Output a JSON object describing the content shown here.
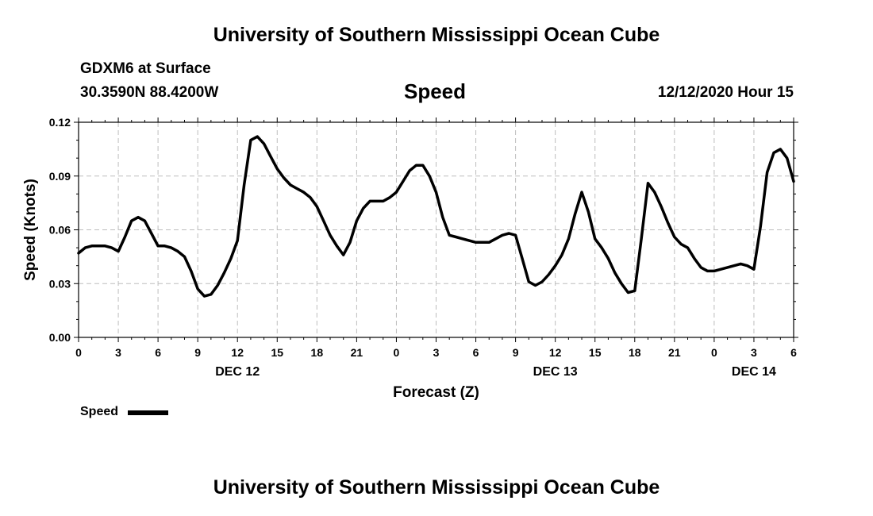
{
  "header": {
    "top_title": "University of Southern Mississippi Ocean Cube",
    "station": "GDXM6 at Surface",
    "coords": "30.3590N 88.4200W",
    "timestamp": "12/12/2020 Hour 15",
    "bottom_title": "University of Southern Mississippi Ocean Cube"
  },
  "legend": {
    "label": "Speed",
    "color": "#000000"
  },
  "chart_data": {
    "type": "line",
    "title": "Speed",
    "xlabel": "Forecast (Z)",
    "ylabel": "Speed (Knots)",
    "xlim": [
      0,
      54
    ],
    "ylim": [
      0,
      0.12
    ],
    "grid": true,
    "y_ticks": [
      "0.00",
      "0.03",
      "0.06",
      "0.09",
      "0.12"
    ],
    "x_tick_labels": [
      "0",
      "3",
      "6",
      "9",
      "12",
      "15",
      "18",
      "21",
      "0",
      "3",
      "6",
      "9",
      "12",
      "15",
      "18",
      "21",
      "0",
      "3",
      "6"
    ],
    "day_labels": [
      {
        "label": "DEC 12",
        "at_hours": 12
      },
      {
        "label": "DEC 13",
        "at_hours": 36
      },
      {
        "label": "DEC 14",
        "at_hours": 51
      }
    ],
    "series": [
      {
        "name": "Speed",
        "color": "#000000",
        "x": [
          0,
          0.5,
          1,
          1.5,
          2,
          2.5,
          3,
          3.5,
          4,
          4.5,
          5,
          5.5,
          6,
          6.5,
          7,
          7.5,
          8,
          8.5,
          9,
          9.5,
          10,
          10.5,
          11,
          11.5,
          12,
          12.5,
          13,
          13.5,
          14,
          14.5,
          15,
          15.5,
          16,
          16.5,
          17,
          17.5,
          18,
          18.5,
          19,
          19.5,
          20,
          20.5,
          21,
          21.5,
          22,
          22.5,
          23,
          23.5,
          24,
          24.5,
          25,
          25.5,
          26,
          26.5,
          27,
          27.5,
          28,
          28.5,
          29,
          29.5,
          30,
          30.5,
          31,
          31.5,
          32,
          32.5,
          33,
          33.5,
          34,
          34.5,
          35,
          35.5,
          36,
          36.5,
          37,
          37.5,
          38,
          38.5,
          39,
          39.5,
          40,
          40.5,
          41,
          41.5,
          42,
          42.5,
          43,
          43.5,
          44,
          44.5,
          45,
          45.5,
          46,
          46.5,
          47,
          47.5,
          48,
          48.5,
          49,
          49.5,
          50,
          50.5,
          51,
          51.5,
          52,
          52.5,
          53,
          53.5,
          54
        ],
        "values": [
          0.047,
          0.05,
          0.051,
          0.051,
          0.051,
          0.05,
          0.048,
          0.056,
          0.065,
          0.067,
          0.065,
          0.058,
          0.051,
          0.051,
          0.05,
          0.048,
          0.045,
          0.037,
          0.027,
          0.023,
          0.024,
          0.029,
          0.036,
          0.044,
          0.054,
          0.085,
          0.11,
          0.112,
          0.108,
          0.101,
          0.094,
          0.089,
          0.085,
          0.083,
          0.081,
          0.078,
          0.073,
          0.065,
          0.057,
          0.051,
          0.046,
          0.053,
          0.065,
          0.072,
          0.076,
          0.076,
          0.076,
          0.078,
          0.081,
          0.087,
          0.093,
          0.096,
          0.096,
          0.09,
          0.081,
          0.067,
          0.057,
          0.056,
          0.055,
          0.054,
          0.053,
          0.053,
          0.053,
          0.055,
          0.057,
          0.058,
          0.057,
          0.044,
          0.031,
          0.029,
          0.031,
          0.035,
          0.04,
          0.046,
          0.055,
          0.069,
          0.081,
          0.07,
          0.055,
          0.05,
          0.044,
          0.036,
          0.03,
          0.025,
          0.026,
          0.055,
          0.086,
          0.081,
          0.073,
          0.064,
          0.056,
          0.052,
          0.05,
          0.044,
          0.039,
          0.037,
          0.037,
          0.038,
          0.039,
          0.04,
          0.041,
          0.04,
          0.038,
          0.062,
          0.092,
          0.103,
          0.105,
          0.1,
          0.087
        ]
      }
    ]
  }
}
